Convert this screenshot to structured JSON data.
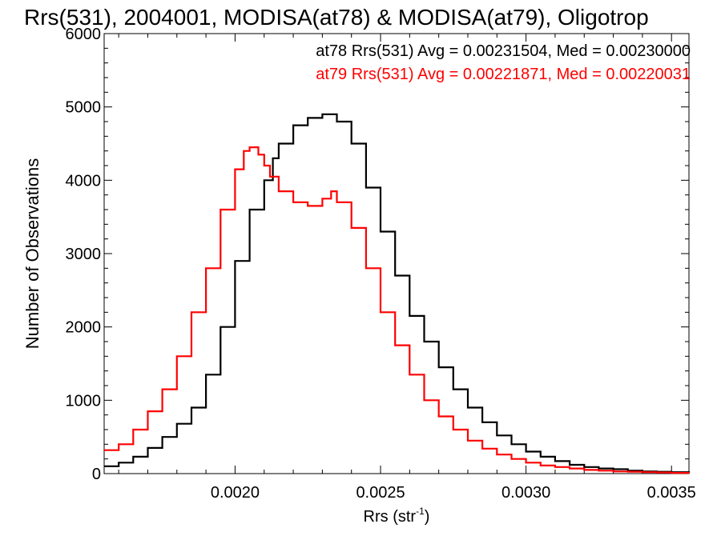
{
  "chart_data": {
    "type": "line",
    "title": "Rrs(531), 2004001, MODISA(at78) & MODISA(at79), Oligotrop",
    "xlabel": "Rrs (str",
    "xlabel_sup": "-1",
    "xlabel_close": ")",
    "ylabel": "Number of Observations",
    "xlim": [
      0.00155,
      0.00356
    ],
    "ylim": [
      0,
      6000
    ],
    "xticks": [
      0.002,
      0.0025,
      0.003,
      0.0035
    ],
    "xtick_labels": [
      "0.0020",
      "0.0025",
      "0.0030",
      "0.0035"
    ],
    "yticks": [
      0,
      1000,
      2000,
      3000,
      4000,
      5000,
      6000
    ],
    "ytick_labels": [
      "0",
      "1000",
      "2000",
      "3000",
      "4000",
      "5000",
      "6000"
    ],
    "grid": false,
    "series": [
      {
        "name": "at78",
        "color": "#000000",
        "stats_label": "at78 Rrs(531) Avg = 0.00231504, Med = 0.00230000",
        "x": [
          0.00155,
          0.0016,
          0.00165,
          0.0017,
          0.00175,
          0.0018,
          0.00185,
          0.0019,
          0.00195,
          0.002,
          0.00205,
          0.0021,
          0.00213,
          0.00215,
          0.0022,
          0.00225,
          0.0023,
          0.00235,
          0.0024,
          0.00245,
          0.0025,
          0.00255,
          0.0026,
          0.00265,
          0.0027,
          0.00275,
          0.0028,
          0.00285,
          0.0029,
          0.00295,
          0.003,
          0.00305,
          0.0031,
          0.00315,
          0.0032,
          0.00325,
          0.0033,
          0.00335,
          0.0034,
          0.00345,
          0.0035,
          0.00356
        ],
        "y": [
          100,
          150,
          230,
          350,
          500,
          680,
          900,
          1350,
          2000,
          2900,
          3600,
          4000,
          4300,
          4500,
          4750,
          4850,
          4900,
          4800,
          4500,
          3900,
          3300,
          2700,
          2150,
          1800,
          1450,
          1150,
          900,
          700,
          520,
          400,
          300,
          230,
          170,
          120,
          90,
          70,
          60,
          40,
          30,
          25,
          20,
          10
        ]
      },
      {
        "name": "at79",
        "color": "#ff0000",
        "stats_label": "at79 Rrs(531) Avg = 0.00221871, Med = 0.00220031",
        "x": [
          0.00155,
          0.0016,
          0.00165,
          0.0017,
          0.00175,
          0.0018,
          0.00185,
          0.0019,
          0.00195,
          0.002,
          0.00203,
          0.00205,
          0.00208,
          0.0021,
          0.00212,
          0.00215,
          0.0022,
          0.00225,
          0.0023,
          0.00233,
          0.00235,
          0.0024,
          0.00245,
          0.0025,
          0.00255,
          0.0026,
          0.00265,
          0.0027,
          0.00275,
          0.0028,
          0.00285,
          0.0029,
          0.00295,
          0.003,
          0.00305,
          0.0031,
          0.00315,
          0.0032,
          0.00325,
          0.0033,
          0.00335,
          0.0034,
          0.00345,
          0.0035,
          0.00356
        ],
        "y": [
          320,
          400,
          600,
          850,
          1150,
          1600,
          2200,
          2800,
          3600,
          4150,
          4400,
          4450,
          4350,
          4200,
          4050,
          3850,
          3700,
          3650,
          3750,
          3850,
          3700,
          3350,
          2800,
          2200,
          1750,
          1350,
          1000,
          780,
          600,
          450,
          340,
          260,
          200,
          150,
          110,
          90,
          70,
          50,
          40,
          30,
          25,
          20,
          15,
          10,
          5
        ]
      }
    ]
  }
}
